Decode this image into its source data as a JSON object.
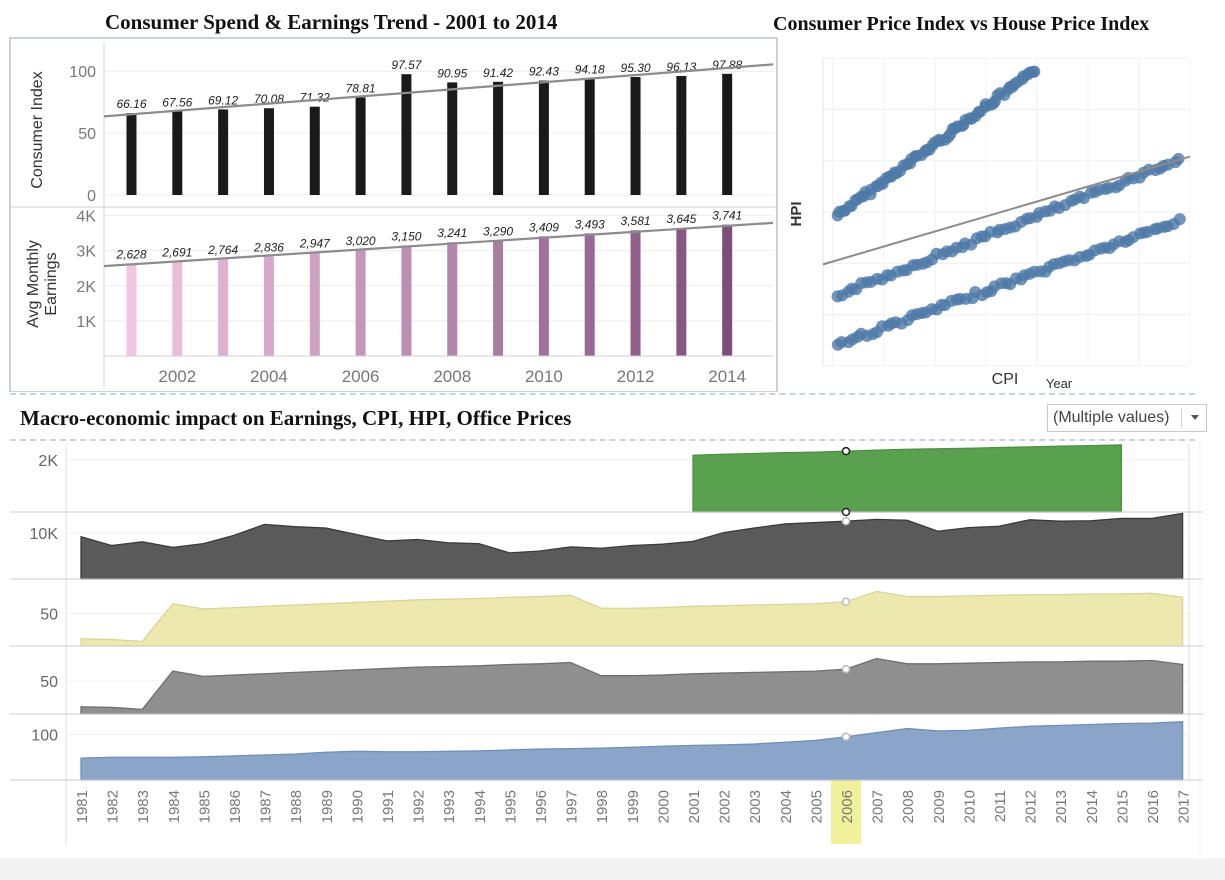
{
  "titles": {
    "spend": "Consumer Spend & Earnings Trend -  2001 to 2014",
    "cpi_hpi": "Consumer Price Index vs House Price Index",
    "macro": "Macro-economic impact on Earnings, CPI, HPI, Office Prices"
  },
  "filter": {
    "value": "(Multiple values)"
  },
  "colors": {
    "consumer_bar": "#1a1a1a",
    "trend_line": "#8c8c8c",
    "earnings_light": "#f0c6e0",
    "earnings_dark": "#7d4d7c",
    "scatter": "#4e79a7",
    "office_green": "#59a14f",
    "earnings_dark_gray": "#5a5a5a",
    "cpi_yellow": "#ede9ae",
    "hpi_gray": "#8f8f8f",
    "blue_area": "#8aa5c8",
    "highlight": "#f1f09b"
  },
  "chart_data": [
    {
      "type": "bar",
      "title": "Consumer Spend & Earnings Trend -  2001 to 2014",
      "categories": [
        2001,
        2002,
        2003,
        2004,
        2005,
        2006,
        2007,
        2008,
        2009,
        2010,
        2011,
        2012,
        2013,
        2014
      ],
      "x_ticks": [
        "2002",
        "2004",
        "2006",
        "2008",
        "2010",
        "2012",
        "2014"
      ],
      "panels": [
        {
          "ylabel": "Consumer Index",
          "ylim": [
            0,
            105
          ],
          "y_ticks": [
            {
              "v": 0,
              "t": "0"
            },
            {
              "v": 50,
              "t": "50"
            },
            {
              "v": 100,
              "t": "100"
            }
          ],
          "values": [
            66.16,
            67.56,
            69.12,
            70.08,
            71.32,
            78.81,
            97.57,
            90.95,
            91.42,
            92.43,
            94.18,
            95.3,
            96.13,
            97.88
          ],
          "labels": [
            "66.16",
            "67.56",
            "69.12",
            "70.08",
            "71.32",
            "78.81",
            "97.57",
            "90.95",
            "91.42",
            "92.43",
            "94.18",
            "95.30",
            "96.13",
            "97.88"
          ],
          "trend": [
            63.5,
            105.5
          ]
        },
        {
          "ylabel": "Avg Monthly Earnings",
          "ylim": [
            0,
            4100
          ],
          "y_ticks": [
            {
              "v": 1000,
              "t": "1K"
            },
            {
              "v": 2000,
              "t": "2K"
            },
            {
              "v": 3000,
              "t": "3K"
            },
            {
              "v": 4000,
              "t": "4K"
            }
          ],
          "values": [
            2628,
            2691,
            2764,
            2836,
            2947,
            3020,
            3150,
            3241,
            3290,
            3409,
            3493,
            3581,
            3645,
            3741
          ],
          "labels": [
            "2,628",
            "2,691",
            "2,764",
            "2,836",
            "2,947",
            "3,020",
            "3,150",
            "3,241",
            "3,290",
            "3,409",
            "3,493",
            "3,581",
            "3,645",
            "3,741"
          ],
          "trend": [
            2560,
            3790
          ]
        }
      ],
      "grid": true
    },
    {
      "type": "scatter",
      "title": "Consumer Price Index vs House Price Index",
      "xlabel": "CPI",
      "ylabel": "HPI",
      "extra_label": "Year",
      "ylim": [
        0,
        100
      ],
      "series": [
        {
          "x_range": [
            0.04,
            0.58
          ],
          "y_range": [
            49,
            96
          ]
        },
        {
          "x_range": [
            0.04,
            0.97
          ],
          "y_range": [
            23,
            67
          ]
        },
        {
          "x_range": [
            0.04,
            0.97
          ],
          "y_range": [
            7,
            47
          ]
        }
      ],
      "trend": {
        "y_start": 33,
        "y_end": 68
      },
      "grid": true
    },
    {
      "type": "area",
      "title": "Macro-economic impact on Earnings, CPI, HPI, Office Prices",
      "x": [
        1981,
        1982,
        1983,
        1984,
        1985,
        1986,
        1987,
        1988,
        1989,
        1990,
        1991,
        1992,
        1993,
        1994,
        1995,
        1996,
        1997,
        1998,
        1999,
        2000,
        2001,
        2002,
        2003,
        2004,
        2005,
        2006,
        2007,
        2008,
        2009,
        2010,
        2011,
        2012,
        2013,
        2014,
        2015,
        2016,
        2017
      ],
      "highlight_x": 2006,
      "rows": [
        {
          "tick_v": 2000,
          "tick_t": "2K",
          "ylim": [
            0,
            2450
          ],
          "values": [
            null,
            null,
            null,
            null,
            null,
            null,
            null,
            null,
            null,
            null,
            null,
            null,
            null,
            null,
            null,
            null,
            null,
            null,
            null,
            null,
            2170,
            2210,
            2240,
            2270,
            2290,
            2330,
            2370,
            2400,
            2420,
            2440,
            2470,
            2490,
            2520,
            2540,
            2570,
            null,
            null
          ]
        },
        {
          "tick_v": 10000,
          "tick_t": "10K",
          "ylim": [
            0,
            14600
          ],
          "values": [
            9200,
            7300,
            8100,
            6900,
            7700,
            9500,
            11900,
            11400,
            11100,
            9700,
            8300,
            8600,
            7900,
            7700,
            5700,
            6100,
            7000,
            6700,
            7300,
            7600,
            8200,
            10100,
            11100,
            12000,
            12300,
            12600,
            13000,
            12800,
            10400,
            11200,
            11500,
            12900,
            12600,
            12700,
            13200,
            13200,
            14300
          ]
        },
        {
          "tick_v": 50,
          "tick_t": "50",
          "ylim": [
            0,
            103
          ],
          "values": [
            11,
            10,
            7,
            65,
            57,
            59,
            61,
            63,
            65,
            67,
            69,
            71,
            72,
            73,
            75,
            76,
            78,
            58,
            58,
            59,
            61,
            62,
            63,
            64,
            65,
            68,
            84,
            76,
            76,
            77,
            78,
            79,
            79,
            80,
            80,
            81,
            75
          ]
        },
        {
          "tick_v": 50,
          "tick_t": "50",
          "ylim": [
            0,
            103
          ],
          "values": [
            11,
            10,
            7,
            65,
            57,
            59,
            61,
            63,
            65,
            67,
            69,
            71,
            72,
            73,
            75,
            76,
            78,
            58,
            58,
            59,
            61,
            62,
            63,
            64,
            65,
            68,
            84,
            76,
            76,
            77,
            78,
            79,
            79,
            80,
            80,
            81,
            75
          ]
        },
        {
          "tick_v": 100,
          "tick_t": "100",
          "ylim": [
            0,
            145
          ],
          "values": [
            48,
            50,
            50,
            50,
            51,
            53,
            55,
            57,
            61,
            63,
            62,
            62,
            63,
            64,
            66,
            68,
            69,
            70,
            72,
            74,
            76,
            77,
            79,
            83,
            87,
            95,
            104,
            113,
            108,
            109,
            114,
            118,
            120,
            122,
            124,
            125,
            128
          ]
        }
      ]
    }
  ]
}
